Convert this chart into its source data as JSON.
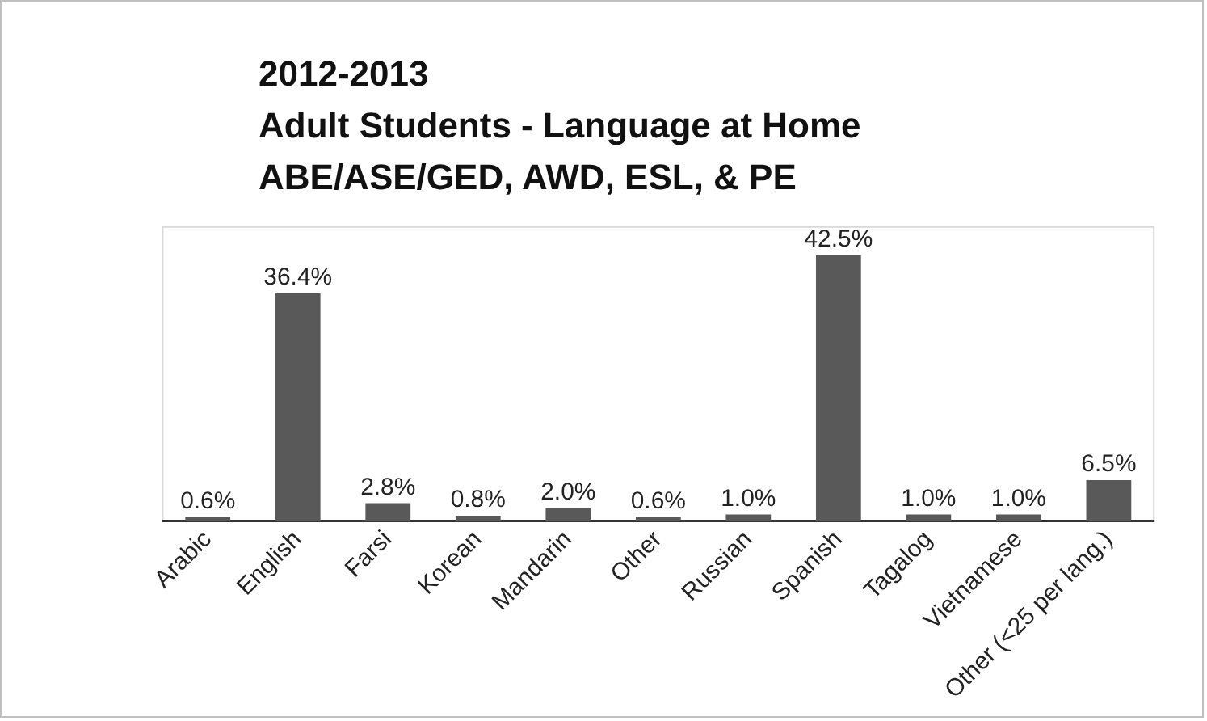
{
  "chart_data": {
    "type": "bar",
    "title": "2012-2013\nAdult Students - Language at Home\nABE/ASE/GED, AWD, ESL, & PE",
    "categories": [
      "Arabic",
      "English",
      "Farsi",
      "Korean",
      "Mandarin",
      "Other",
      "Russian",
      "Spanish",
      "Tagalog",
      "Vietnamese",
      "Other (<25 per lang.)"
    ],
    "values": [
      0.6,
      36.4,
      2.8,
      0.8,
      2.0,
      0.6,
      1.0,
      42.5,
      1.0,
      1.0,
      6.5
    ],
    "value_labels": [
      "0.6%",
      "36.4%",
      "2.8%",
      "0.8%",
      "2.0%",
      "0.6%",
      "1.0%",
      "42.5%",
      "1.0%",
      "1.0%",
      "6.5%"
    ],
    "color": "#595959",
    "grid": false,
    "legend": false
  }
}
